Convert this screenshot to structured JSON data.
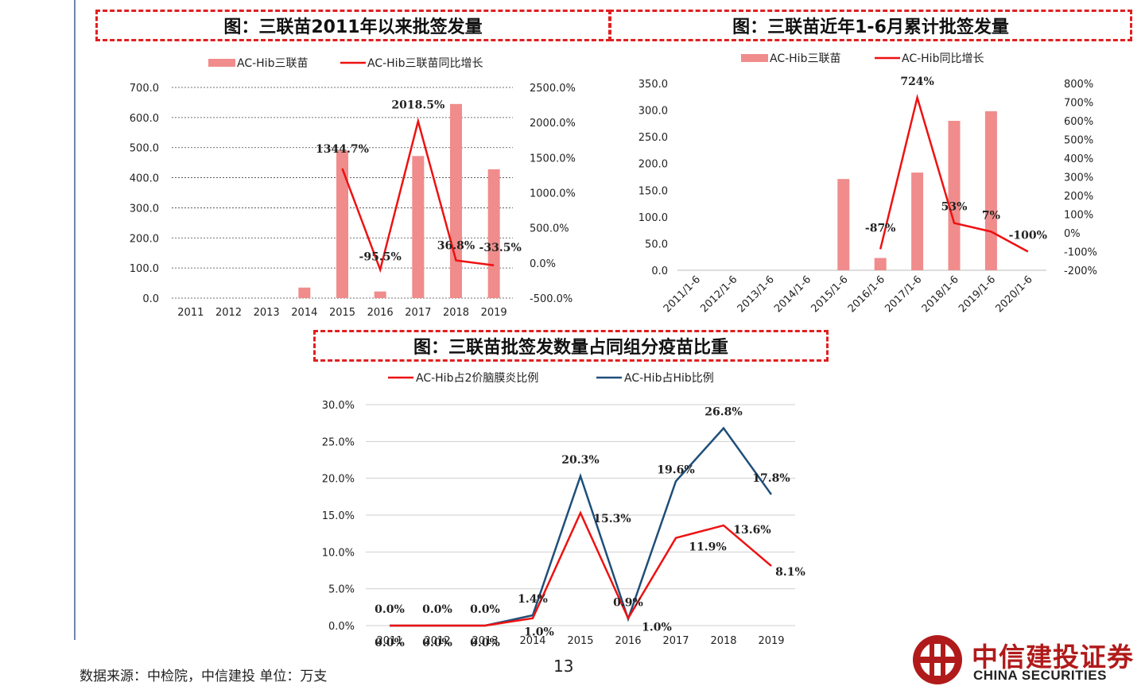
{
  "titles": {
    "chart1": "图：三联苗2011年以来批签发量",
    "chart2": "图：三联苗近年1-6月累计批签发量",
    "chart3": "图：三联苗批签发数量占同组分疫苗比重"
  },
  "footer": {
    "source": "数据来源：中检院，中信建投  单位：万支",
    "page_number": "13"
  },
  "logo": {
    "cn": "中信建投证券",
    "en": "CHINA SECURITIES"
  },
  "colors": {
    "bar": "#f08c8c",
    "red_line": "#ee1111",
    "blue_line": "#1f4e79",
    "title_border": "#e02020"
  },
  "chart_data": [
    {
      "type": "bar",
      "title": "图：三联苗2011年以来批签发量",
      "categories": [
        "2011",
        "2012",
        "2013",
        "2014",
        "2015",
        "2016",
        "2017",
        "2018",
        "2019"
      ],
      "series": [
        {
          "name": "AC-Hib三联苗",
          "type": "bar",
          "axis": "left",
          "values": [
            0,
            0,
            0,
            35,
            490,
            22,
            472,
            645,
            428
          ]
        },
        {
          "name": "AC-Hib三联苗同比增长",
          "type": "line",
          "axis": "right",
          "values": [
            null,
            null,
            null,
            null,
            1344.7,
            -95.5,
            2018.5,
            36.8,
            -33.5
          ],
          "labels": [
            "",
            "",
            "",
            "",
            "1344.7%",
            "-95.5%",
            "2018.5%",
            "36.8%",
            "-33.5%"
          ]
        }
      ],
      "left_ticks": [
        "700.0",
        "600.0",
        "500.0",
        "400.0",
        "300.0",
        "200.0",
        "100.0",
        "0.0"
      ],
      "right_ticks": [
        "2500.0%",
        "2000.0%",
        "1500.0%",
        "1000.0%",
        "500.0%",
        "0.0%",
        "-500.0%"
      ],
      "ylim": [
        0,
        700
      ],
      "y2lim": [
        -500,
        2500
      ],
      "grid": true,
      "legend": "top"
    },
    {
      "type": "bar",
      "title": "图：三联苗近年1-6月累计批签发量",
      "categories": [
        "2011/1-6",
        "2012/1-6",
        "2013/1-6",
        "2014/1-6",
        "2015/1-6",
        "2016/1-6",
        "2017/1-6",
        "2018/1-6",
        "2019/1-6",
        "2020/1-6"
      ],
      "series": [
        {
          "name": "AC-Hib三联苗",
          "type": "bar",
          "axis": "left",
          "values": [
            0,
            0,
            0,
            0,
            171,
            23,
            183,
            280,
            298,
            0
          ]
        },
        {
          "name": "AC-Hib同比增长",
          "type": "line",
          "axis": "right",
          "values": [
            null,
            null,
            null,
            null,
            null,
            -87,
            724,
            53,
            7,
            -100
          ],
          "labels": [
            "",
            "",
            "",
            "",
            "",
            "-87%",
            "724%",
            "53%",
            "7%",
            "-100%"
          ]
        }
      ],
      "left_ticks": [
        "350.0",
        "300.0",
        "250.0",
        "200.0",
        "150.0",
        "100.0",
        "50.0",
        "0.0"
      ],
      "right_ticks": [
        "800%",
        "700%",
        "600%",
        "500%",
        "400%",
        "300%",
        "200%",
        "100%",
        "0%",
        "-100%",
        "-200%"
      ],
      "ylim": [
        0,
        350
      ],
      "y2lim": [
        -200,
        800
      ],
      "grid": false,
      "legend": "top"
    },
    {
      "type": "line",
      "title": "图：三联苗批签发数量占同组分疫苗比重",
      "categories": [
        "2011",
        "2012",
        "2013",
        "2014",
        "2015",
        "2016",
        "2017",
        "2018",
        "2019"
      ],
      "series": [
        {
          "name": "AC-Hib占2价脑膜炎比例",
          "values": [
            0.0,
            0.0,
            0.0,
            1.0,
            15.3,
            1.0,
            11.9,
            13.6,
            8.1
          ],
          "labels": [
            "0.0%",
            "0.0%",
            "0.0%",
            "1.0%",
            "15.3%",
            "1.0%",
            "11.9%",
            "13.6%",
            "8.1%"
          ]
        },
        {
          "name": "AC-Hib占Hib比例",
          "values": [
            0.0,
            0.0,
            0.0,
            1.4,
            20.3,
            0.9,
            19.6,
            26.8,
            17.8
          ],
          "labels": [
            "0.0%",
            "0.0%",
            "0.0%",
            "1.4%",
            "20.3%",
            "0.9%",
            "19.6%",
            "26.8%",
            "17.8%"
          ]
        }
      ],
      "y_ticks": [
        "30.0%",
        "25.0%",
        "20.0%",
        "15.0%",
        "10.0%",
        "5.0%",
        "0.0%"
      ],
      "ylim": [
        0,
        30
      ],
      "grid": true,
      "legend": "top"
    }
  ]
}
